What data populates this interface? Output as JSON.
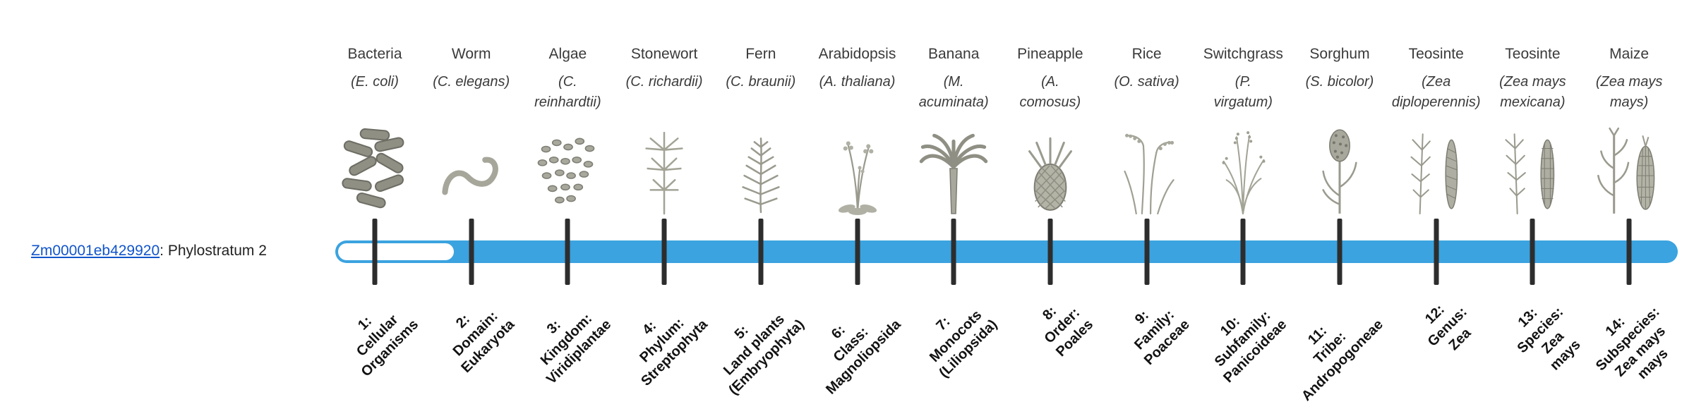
{
  "figure": {
    "gene_link_text": "Zm00001eb429920",
    "gene_annotation": ": Phylostratum 2",
    "phylostratum_value": 2
  },
  "colors": {
    "bar_fill": "#3BA3DF",
    "tick": "#2d2d2d",
    "link": "#1155CC",
    "illustration": "#9a9a8e"
  },
  "strata": [
    {
      "index": 1,
      "organism": "Bacteria",
      "scientific": "(E. coli)",
      "label": "1:\nCellular\nOrganisms",
      "icon": "bacteria-icon"
    },
    {
      "index": 2,
      "organism": "Worm",
      "scientific": "(C. elegans)",
      "label": "2:\nDomain:\nEukaryota",
      "icon": "worm-icon"
    },
    {
      "index": 3,
      "organism": "Algae",
      "scientific": "(C.\nreinhardtii)",
      "label": "3:\nKingdom:\nViridiplantae",
      "icon": "algae-icon"
    },
    {
      "index": 4,
      "organism": "Stonewort",
      "scientific": "(C. richardii)",
      "label": "4:\nPhylum:\nStreptophyta",
      "icon": "stonewort-icon"
    },
    {
      "index": 5,
      "organism": "Fern",
      "scientific": "(C. braunii)",
      "label": "5:\nLand plants\n(Embryophyta)",
      "icon": "fern-icon"
    },
    {
      "index": 6,
      "organism": "Arabidopsis",
      "scientific": "(A. thaliana)",
      "label": "6:\nClass:\nMagnoliopsida",
      "icon": "arabidopsis-icon"
    },
    {
      "index": 7,
      "organism": "Banana",
      "scientific": "(M.\nacuminata)",
      "label": "7:\nMonocots\n(Liliopsida)",
      "icon": "banana-icon"
    },
    {
      "index": 8,
      "organism": "Pineapple",
      "scientific": "(A.\ncomosus)",
      "label": "8:\nOrder:\nPoales",
      "icon": "pineapple-icon"
    },
    {
      "index": 9,
      "organism": "Rice",
      "scientific": "(O. sativa)",
      "label": "9:\nFamily:\nPoaceae",
      "icon": "rice-icon"
    },
    {
      "index": 10,
      "organism": "Switchgrass",
      "scientific": "(P.\nvirgatum)",
      "label": "10:\nSubfamily:\nPanicoideae",
      "icon": "switchgrass-icon"
    },
    {
      "index": 11,
      "organism": "Sorghum",
      "scientific": "(S. bicolor)",
      "label": "11:\nTribe:\nAndropogoneae",
      "icon": "sorghum-icon"
    },
    {
      "index": 12,
      "organism": "Teosinte",
      "scientific": "(Zea\ndiploperennis)",
      "label": "12:\nGenus:\nZea",
      "icon": "teosinte-diploperennis-icon"
    },
    {
      "index": 13,
      "organism": "Teosinte",
      "scientific": "(Zea mays\nmexicana)",
      "label": "13:\nSpecies:\nZea\nmays",
      "icon": "teosinte-mexicana-icon"
    },
    {
      "index": 14,
      "organism": "Maize",
      "scientific": "(Zea mays\nmays)",
      "label": "14:\nSubspecies:\nZea mays\nmays",
      "icon": "maize-icon"
    }
  ]
}
